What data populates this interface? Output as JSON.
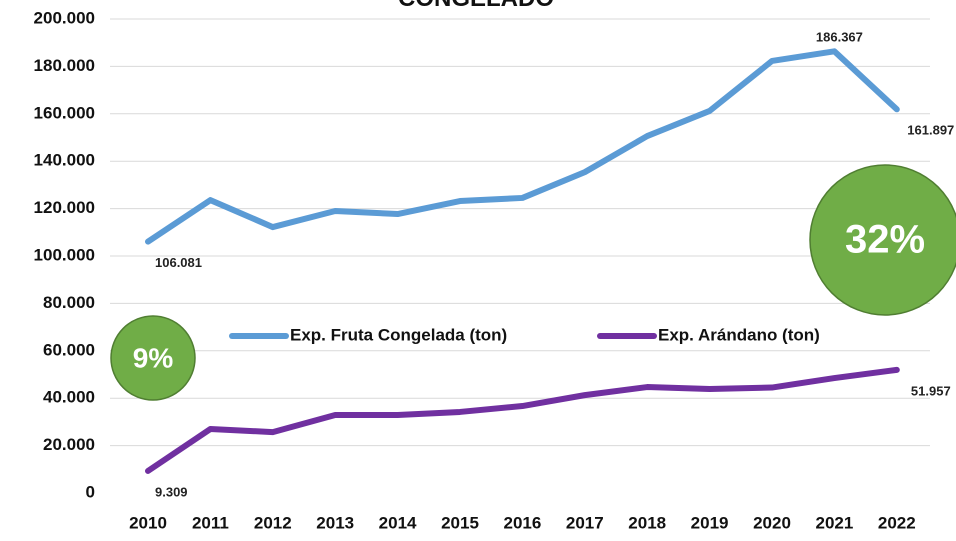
{
  "chart_data": {
    "type": "line",
    "title": "CONGELADO",
    "categories": [
      "2010",
      "2011",
      "2012",
      "2013",
      "2014",
      "2015",
      "2016",
      "2017",
      "2018",
      "2019",
      "2020",
      "2021",
      "2022"
    ],
    "series": [
      {
        "name": "Exp. Fruta Congelada (ton)",
        "color": "#5b9bd5",
        "values": [
          106081,
          123600,
          112200,
          119000,
          117700,
          123200,
          124500,
          135400,
          150600,
          161200,
          182300,
          186367,
          161897
        ],
        "value_labels": [
          "106.081",
          null,
          null,
          null,
          null,
          null,
          null,
          null,
          null,
          null,
          null,
          "186.367",
          "161.897"
        ]
      },
      {
        "name": "Exp. Arándano (ton)",
        "color": "#7030a0",
        "values": [
          9309,
          27000,
          25700,
          32900,
          32900,
          34200,
          36700,
          41300,
          44700,
          43900,
          44500,
          48500,
          51957
        ],
        "value_labels": [
          "9.309",
          null,
          null,
          null,
          null,
          null,
          null,
          null,
          null,
          null,
          null,
          null,
          "51.957"
        ]
      }
    ],
    "ylim": [
      0,
      200000
    ],
    "yticks": [
      0,
      {
        "value": 20000,
        "label": "20.000"
      },
      {
        "value": 40000,
        "label": "40.000"
      },
      {
        "value": 60000,
        "label": "60.000"
      },
      {
        "value": 80000,
        "label": "80.000"
      },
      {
        "value": 100000,
        "label": "100.000"
      },
      {
        "value": 120000,
        "label": "120.000"
      },
      {
        "value": 140000,
        "label": "140.000"
      },
      {
        "value": 160000,
        "label": "160.000"
      },
      {
        "value": 180000,
        "label": "180.000"
      },
      {
        "value": 200000,
        "label": "200.000"
      }
    ],
    "grid": true,
    "annotations": [
      {
        "text": "9%",
        "color": "#70ad47"
      },
      {
        "text": "32%",
        "color": "#70ad47"
      }
    ]
  }
}
